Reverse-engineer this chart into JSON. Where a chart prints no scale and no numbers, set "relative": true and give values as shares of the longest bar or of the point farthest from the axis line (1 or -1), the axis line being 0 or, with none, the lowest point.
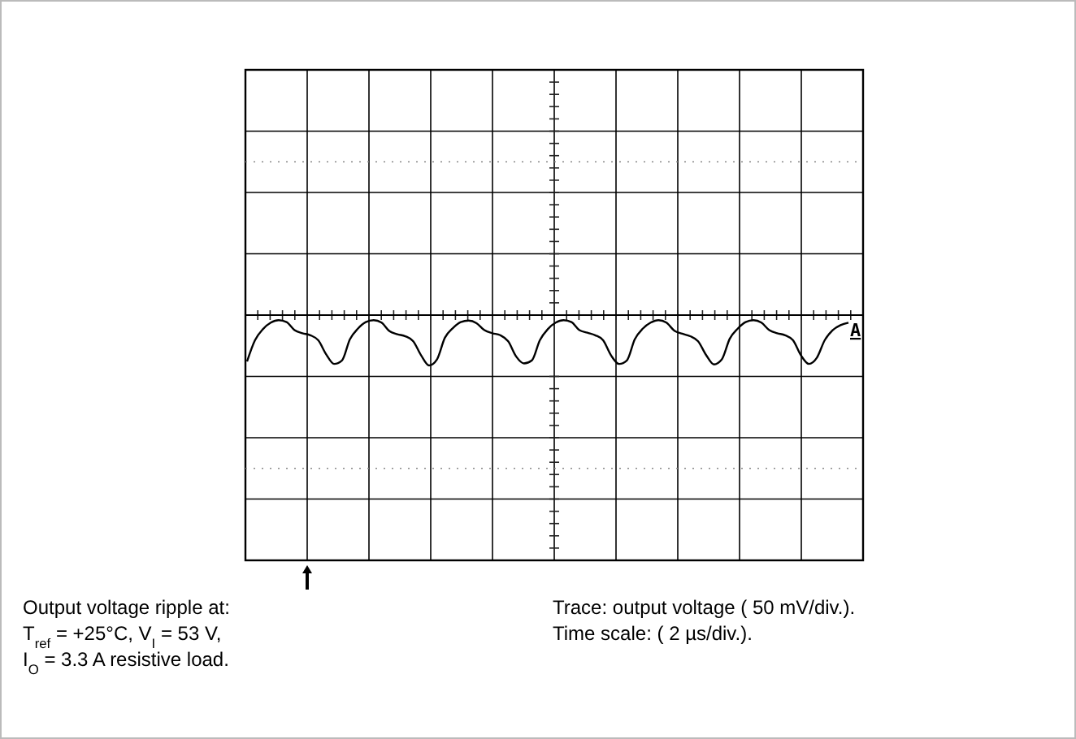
{
  "chart_data": {
    "type": "line",
    "relative": true,
    "grid": true,
    "categories": [
      null,
      null,
      null,
      null,
      null,
      null,
      null,
      null,
      null,
      null,
      null,
      null,
      null,
      null,
      null,
      null,
      null,
      null,
      null,
      null,
      null,
      null,
      null,
      null,
      null,
      null,
      null,
      null,
      null,
      null,
      null,
      null,
      null,
      null,
      null,
      null,
      null,
      null,
      null,
      null,
      null,
      null,
      null,
      null,
      null,
      null,
      null,
      null,
      null,
      null,
      null,
      null,
      null,
      null,
      null,
      null,
      null,
      null,
      null,
      null,
      null,
      null,
      null,
      null,
      null,
      null,
      null,
      null,
      null,
      null,
      null,
      null,
      null,
      null,
      null,
      null,
      null
    ],
    "series": [
      {
        "color": "#000000",
        "values": [
          -0.92,
          -0.5,
          -0.28,
          -0.15,
          -0.1,
          -0.14,
          -0.3,
          -0.36,
          -0.4,
          -0.5,
          -0.78,
          -0.97,
          -0.9,
          -0.48,
          -0.27,
          -0.14,
          -0.1,
          -0.15,
          -0.32,
          -0.38,
          -0.42,
          -0.52,
          -0.8,
          -1,
          -0.88,
          -0.45,
          -0.26,
          -0.14,
          -0.11,
          -0.16,
          -0.3,
          -0.36,
          -0.4,
          -0.52,
          -0.82,
          -0.96,
          -0.9,
          -0.5,
          -0.28,
          -0.15,
          -0.1,
          -0.14,
          -0.3,
          -0.35,
          -0.4,
          -0.5,
          -0.8,
          -0.97,
          -0.9,
          -0.48,
          -0.27,
          -0.15,
          -0.1,
          -0.15,
          -0.31,
          -0.37,
          -0.42,
          -0.52,
          -0.79,
          -0.98,
          -0.88,
          -0.47,
          -0.27,
          -0.14,
          -0.1,
          -0.15,
          -0.3,
          -0.36,
          -0.4,
          -0.5,
          -0.8,
          -0.97,
          -0.85,
          -0.5,
          -0.3,
          -0.2,
          -0.15
        ]
      }
    ],
    "annotations": [
      "Output voltage ripple  at:",
      "T$_{ref}$ = +25°C, V$_{I}$ = 53 V,",
      "I$_{O}$ = 3.3 A resistive load.",
      "Trace: output voltage ( 50 mV/div.).",
      "Time scale: ( 2 µs/div.).",
      "A"
    ]
  }
}
